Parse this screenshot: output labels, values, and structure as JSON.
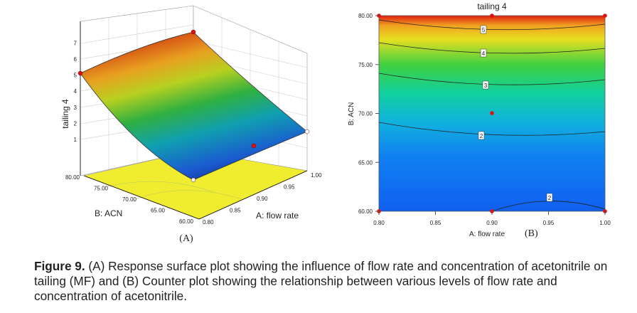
{
  "panel_a": {
    "z_axis_title": "tailing 4",
    "z_ticks": [
      "1",
      "2",
      "3",
      "4",
      "5",
      "6",
      "7"
    ],
    "b_ticks": [
      "80.00",
      "75.00",
      "70.00",
      "65.00",
      "60.00"
    ],
    "a_ticks": [
      "0.80",
      "0.85",
      "0.90",
      "0.95",
      "1.00"
    ],
    "b_axis_title": "B: ACN",
    "a_axis_title": "A: flow rate",
    "label": "(A)"
  },
  "panel_b": {
    "title": "tailing 4",
    "y_ticks": [
      "80.00",
      "75.00",
      "70.00",
      "65.00",
      "60.00"
    ],
    "x_ticks": [
      "0.80",
      "0.85",
      "0.90",
      "0.95",
      "1.00"
    ],
    "y_axis_title": "B: ACN",
    "x_axis_title": "A: flow rate",
    "label": "(B)",
    "contour_labels": [
      "5",
      "4",
      "3",
      "2",
      "2"
    ]
  },
  "caption": {
    "label": "Figure 9.",
    "text": "(A) Response surface plot showing the influence of flow rate and concentration of acetonitrile on tailing (MF) and (B) Counter plot showing the relationship between various levels of flow rate and concentration of acetonitrile."
  }
}
